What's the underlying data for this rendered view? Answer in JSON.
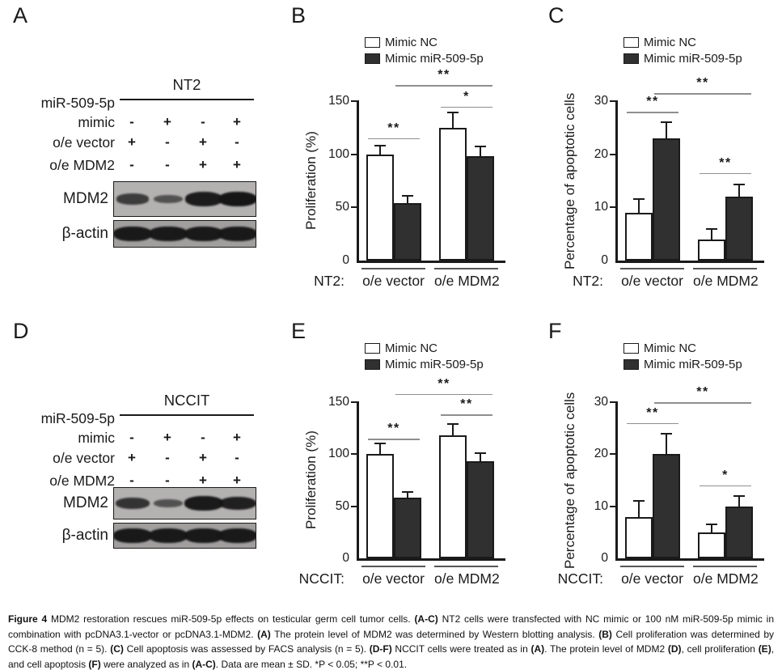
{
  "panels": {
    "A": {
      "letter": "A"
    },
    "B": {
      "letter": "B"
    },
    "C": {
      "letter": "C"
    },
    "D": {
      "letter": "D"
    },
    "E": {
      "letter": "E"
    },
    "F": {
      "letter": "F"
    }
  },
  "blots": [
    {
      "panel": "A",
      "cell_line": "NT2",
      "condition_rows": [
        {
          "label_lines": [
            "miR-509-5p",
            "mimic"
          ],
          "signs": [
            "-",
            "+",
            "-",
            "+"
          ]
        },
        {
          "label_lines": [
            "o/e vector"
          ],
          "signs": [
            "+",
            "-",
            "+",
            "-"
          ]
        },
        {
          "label_lines": [
            "o/e MDM2"
          ],
          "signs": [
            "-",
            "-",
            "+",
            "+"
          ]
        }
      ],
      "blot_rows": [
        {
          "label": "MDM2",
          "band_intensities": [
            0.55,
            0.3,
            0.92,
            1.0
          ]
        },
        {
          "label": "β-actin",
          "band_intensities": [
            0.95,
            0.95,
            0.95,
            0.95
          ]
        }
      ]
    },
    {
      "panel": "D",
      "cell_line": "NCCIT",
      "condition_rows": [
        {
          "label_lines": [
            "miR-509-5p",
            "mimic"
          ],
          "signs": [
            "-",
            "+",
            "-",
            "+"
          ]
        },
        {
          "label_lines": [
            "o/e vector"
          ],
          "signs": [
            "+",
            "-",
            "+",
            "-"
          ]
        },
        {
          "label_lines": [
            "o/e MDM2"
          ],
          "signs": [
            "-",
            "-",
            "+",
            "+"
          ]
        }
      ],
      "blot_rows": [
        {
          "label": "MDM2",
          "band_intensities": [
            0.65,
            0.3,
            0.95,
            0.88
          ]
        },
        {
          "label": "β-actin",
          "band_intensities": [
            0.95,
            0.95,
            0.95,
            0.95
          ]
        }
      ]
    }
  ],
  "chart_data": [
    {
      "panel": "B",
      "type": "bar",
      "title": "",
      "ylabel": "Proliferation (%)",
      "ylim": [
        0,
        150
      ],
      "yticks": [
        0,
        50,
        100,
        150
      ],
      "x_prefix": "NT2:",
      "categories": [
        "o/e vector",
        "o/e MDM2"
      ],
      "legend_position": "top",
      "series": [
        {
          "name": "Mimic NC",
          "values": [
            100,
            125
          ],
          "errors": [
            8,
            14
          ]
        },
        {
          "name": "Mimic miR-509-5p",
          "values": [
            54,
            98
          ],
          "errors": [
            7,
            9
          ]
        }
      ],
      "significance": [
        {
          "bars": [
            0,
            1
          ],
          "y": 115,
          "label": "**"
        },
        {
          "bars": [
            2,
            3
          ],
          "y": 145,
          "label": "*"
        },
        {
          "bars": [
            1,
            3
          ],
          "y": 165,
          "label": "**"
        }
      ]
    },
    {
      "panel": "C",
      "type": "bar",
      "title": "",
      "ylabel": "Percentage of apoptotic cells",
      "ylim": [
        0,
        30
      ],
      "yticks": [
        0,
        10,
        20,
        30
      ],
      "x_prefix": "NT2:",
      "categories": [
        "o/e vector",
        "o/e MDM2"
      ],
      "legend_position": "top",
      "series": [
        {
          "name": "Mimic NC",
          "values": [
            9,
            4
          ],
          "errors": [
            2.5,
            2
          ]
        },
        {
          "name": "Mimic miR-509-5p",
          "values": [
            23,
            12
          ],
          "errors": [
            3,
            2.3
          ]
        }
      ],
      "significance": [
        {
          "bars": [
            0,
            1
          ],
          "y": 28,
          "label": "**"
        },
        {
          "bars": [
            2,
            3
          ],
          "y": 16.5,
          "label": "**"
        },
        {
          "bars": [
            1,
            3
          ],
          "y": 31.5,
          "label": "**"
        }
      ]
    },
    {
      "panel": "E",
      "type": "bar",
      "title": "",
      "ylabel": "Proliferation (%)",
      "ylim": [
        0,
        150
      ],
      "yticks": [
        0,
        50,
        100,
        150
      ],
      "x_prefix": "NCCIT:",
      "categories": [
        "o/e vector",
        "o/e MDM2"
      ],
      "legend_position": "top",
      "series": [
        {
          "name": "Mimic NC",
          "values": [
            100,
            118
          ],
          "errors": [
            10,
            11
          ]
        },
        {
          "name": "Mimic miR-509-5p",
          "values": [
            58,
            93
          ],
          "errors": [
            6,
            8
          ]
        }
      ],
      "significance": [
        {
          "bars": [
            0,
            1
          ],
          "y": 115,
          "label": "**"
        },
        {
          "bars": [
            2,
            3
          ],
          "y": 138,
          "label": "**"
        },
        {
          "bars": [
            1,
            3
          ],
          "y": 158,
          "label": "**"
        }
      ]
    },
    {
      "panel": "F",
      "type": "bar",
      "title": "",
      "ylabel": "Percentage of apoptotic cells",
      "ylim": [
        0,
        30
      ],
      "yticks": [
        0,
        10,
        20,
        30
      ],
      "x_prefix": "NCCIT:",
      "categories": [
        "o/e vector",
        "o/e MDM2"
      ],
      "legend_position": "top",
      "series": [
        {
          "name": "Mimic NC",
          "values": [
            8,
            5
          ],
          "errors": [
            3,
            1.5
          ]
        },
        {
          "name": "Mimic miR-509-5p",
          "values": [
            20,
            10
          ],
          "errors": [
            4,
            2
          ]
        }
      ],
      "significance": [
        {
          "bars": [
            0,
            1
          ],
          "y": 26,
          "label": "**"
        },
        {
          "bars": [
            2,
            3
          ],
          "y": 14,
          "label": "*"
        },
        {
          "bars": [
            1,
            3
          ],
          "y": 30,
          "label": "**"
        }
      ]
    }
  ],
  "caption_segments": [
    {
      "text": "Figure 4 ",
      "bold": true
    },
    {
      "text": "MDM2 restoration rescues miR-509-5p effects on testicular germ cell tumor cells. ",
      "bold": false
    },
    {
      "text": "(A-C)",
      "bold": true
    },
    {
      "text": " NT2 cells were transfected with NC mimic or 100 nM miR-509-5p mimic in combination with pcDNA3.1-vector or pcDNA3.1-MDM2. ",
      "bold": false
    },
    {
      "text": "(A)",
      "bold": true
    },
    {
      "text": " The protein level of MDM2 was determined by Western blotting analysis. ",
      "bold": false
    },
    {
      "text": "(B)",
      "bold": true
    },
    {
      "text": " Cell proliferation was determined by CCK-8 method (n = 5). ",
      "bold": false
    },
    {
      "text": "(C)",
      "bold": true
    },
    {
      "text": " Cell apoptosis was assessed by FACS analysis (n = 5). ",
      "bold": false
    },
    {
      "text": "(D-F)",
      "bold": true
    },
    {
      "text": " NCCIT cells were treated as in ",
      "bold": false
    },
    {
      "text": "(A)",
      "bold": true
    },
    {
      "text": ". The protein level of MDM2 ",
      "bold": false
    },
    {
      "text": "(D)",
      "bold": true
    },
    {
      "text": ", cell proliferation ",
      "bold": false
    },
    {
      "text": "(E)",
      "bold": true
    },
    {
      "text": ", and cell apoptosis ",
      "bold": false
    },
    {
      "text": "(F)",
      "bold": true
    },
    {
      "text": " were analyzed as in ",
      "bold": false
    },
    {
      "text": "(A-C)",
      "bold": true
    },
    {
      "text": ". Data are mean ± SD. *P < 0.05; **P < 0.01.",
      "bold": false
    }
  ],
  "colors": {
    "axis": "#1a1a1a",
    "bar_nc": "#ffffff",
    "bar_mir": "#303030",
    "sig_line": "#8f8f8f",
    "group_line": "#555555",
    "blot_box_mdm2_bg": "#b4b1b1",
    "blot_box_actin_bg": "#a19e9e",
    "band": "#161616"
  }
}
